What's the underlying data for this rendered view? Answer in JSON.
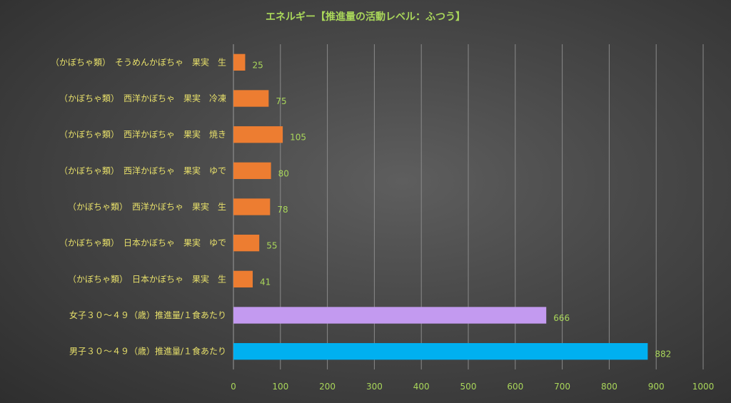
{
  "chart_data": {
    "type": "bar",
    "orientation": "horizontal",
    "title": "エネルギー【推進量の活動レベル：ふつう】",
    "categories": [
      "（かぼちゃ類）　そうめんかぼちゃ　果実　生",
      "（かぼちゃ類）　西洋かぼちゃ　果実　冷凍",
      "（かぼちゃ類）　西洋かぼちゃ　果実　焼き",
      "（かぼちゃ類）　西洋かぼちゃ　果実　ゆで",
      "（かぼちゃ類）　西洋かぼちゃ　果実　生",
      "（かぼちゃ類）　日本かぼちゃ　果実　ゆで",
      "（かぼちゃ類）　日本かぼちゃ　果実　生",
      "女子３０～４９（歳）推進量/１食あたり",
      "男子３０～４９（歳）推進量/１食あたり"
    ],
    "values": [
      25,
      75,
      105,
      80,
      78,
      55,
      41,
      666,
      882
    ],
    "bar_colors": [
      "#ed7d31",
      "#ed7d31",
      "#ed7d31",
      "#ed7d31",
      "#ed7d31",
      "#ed7d31",
      "#ed7d31",
      "#c39af0",
      "#00b0f0"
    ],
    "xlim": [
      0,
      1000
    ],
    "xticks": [
      0,
      100,
      200,
      300,
      400,
      500,
      600,
      700,
      800,
      900,
      1000
    ],
    "grid": true,
    "data_labels": true
  }
}
